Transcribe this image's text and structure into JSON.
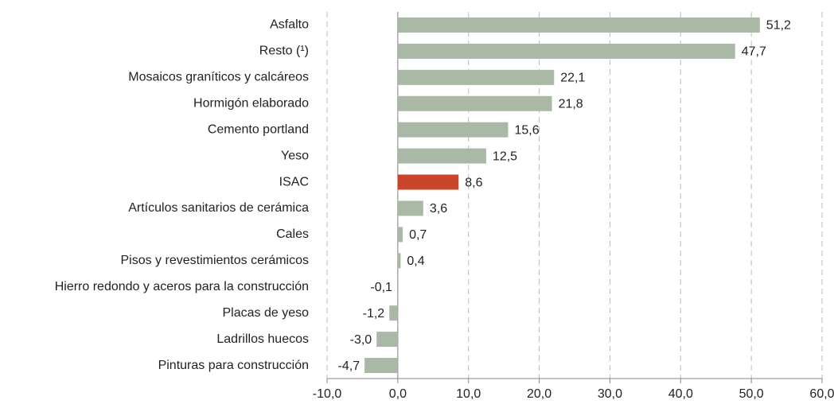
{
  "chart_data": {
    "type": "barh",
    "categories": [
      "Asfalto",
      "Resto (¹)",
      "Mosaicos graníticos y calcáreos",
      "Hormigón elaborado",
      "Cemento portland",
      "Yeso",
      "ISAC",
      "Artículos sanitarios de cerámica",
      "Cales",
      "Pisos y revestimientos cerámicos",
      "Hierro redondo y aceros para la construcción",
      "Placas de yeso",
      "Ladrillos huecos",
      "Pinturas para construcción"
    ],
    "values": [
      51.2,
      47.7,
      22.1,
      21.8,
      15.6,
      12.5,
      8.6,
      3.6,
      0.7,
      0.4,
      -0.1,
      -1.2,
      -3.0,
      -4.7
    ],
    "value_labels": [
      "51,2",
      "47,7",
      "22,1",
      "21,8",
      "15,6",
      "12,5",
      "8,6",
      "3,6",
      "0,7",
      "0,4",
      "-0,1",
      "-1,2",
      "-3,0",
      "-4,7"
    ],
    "colors": [
      "#a9b9a6",
      "#a9b9a6",
      "#a9b9a6",
      "#a9b9a6",
      "#a9b9a6",
      "#a9b9a6",
      "#c8442a",
      "#a9b9a6",
      "#a9b9a6",
      "#a9b9a6",
      "#a9b9a6",
      "#a9b9a6",
      "#a9b9a6",
      "#a9b9a6"
    ],
    "xlim": [
      -10,
      60
    ],
    "xticks": [
      {
        "value": -10,
        "label": "-10,0"
      },
      {
        "value": 0,
        "label": "0,0"
      },
      {
        "value": 10,
        "label": "10,0"
      },
      {
        "value": 20,
        "label": "20,0"
      },
      {
        "value": 30,
        "label": "30,0"
      },
      {
        "value": 40,
        "label": "40,0"
      },
      {
        "value": 50,
        "label": "50,0"
      },
      {
        "value": 60,
        "label": "60,0"
      }
    ],
    "grid": true
  }
}
